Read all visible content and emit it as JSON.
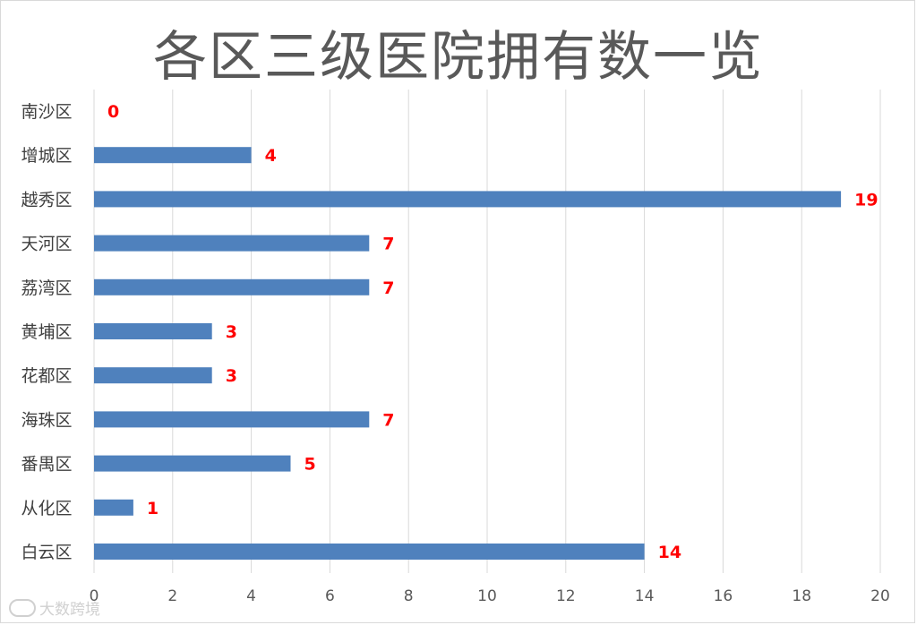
{
  "chart_data": {
    "type": "bar",
    "orientation": "horizontal",
    "title": "各区三级医院拥有数一览",
    "categories": [
      "南沙区",
      "增城区",
      "越秀区",
      "天河区",
      "荔湾区",
      "黄埔区",
      "花都区",
      "海珠区",
      "番禺区",
      "从化区",
      "白云区"
    ],
    "values": [
      0,
      4,
      19,
      7,
      7,
      3,
      3,
      7,
      5,
      1,
      14
    ],
    "xlim": [
      0,
      20
    ],
    "xticks": [
      0,
      2,
      4,
      6,
      8,
      10,
      12,
      14,
      16,
      18,
      20
    ],
    "grid": true,
    "legend": "none",
    "bar_color": "#4f81bd",
    "label_color": "#ff0000"
  },
  "watermark": "大数跨境"
}
